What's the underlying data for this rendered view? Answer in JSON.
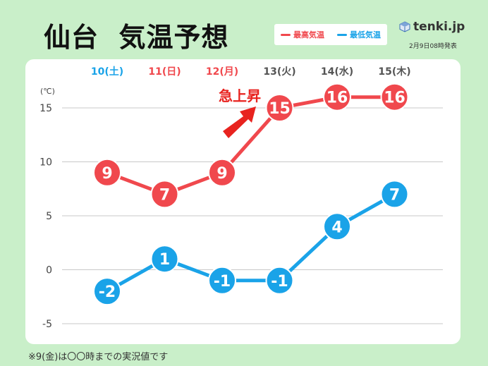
{
  "title": "仙台  気温予想",
  "legend": {
    "high_label": "最高気温",
    "low_label": "最低気温"
  },
  "brand": {
    "name": "tenki.jp",
    "icon": "tenki-logo-icon"
  },
  "issued": "2月9日08時発表",
  "footnote": "※9(金)は〇〇時までの実況値です",
  "annotation": "急上昇",
  "colors": {
    "high": "#f0484d",
    "low": "#1aa3e8",
    "day_weekend": "#1aa3e8",
    "day_holiday": "#f0484d",
    "day_weekday": "#555555",
    "annotation": "#e8231f",
    "background": "#c9efc9"
  },
  "chart_data": {
    "type": "line",
    "categories": [
      "10(土)",
      "11(日)",
      "12(月)",
      "13(火)",
      "14(水)",
      "15(木)"
    ],
    "category_styles": [
      "weekend",
      "holiday",
      "holiday",
      "weekday",
      "weekday",
      "weekday"
    ],
    "series": [
      {
        "name": "最高気温",
        "color": "#f0484d",
        "values": [
          9,
          7,
          9,
          15,
          16,
          16
        ]
      },
      {
        "name": "最低気温",
        "color": "#1aa3e8",
        "values": [
          -2,
          1,
          -1,
          -1,
          4,
          7
        ]
      }
    ],
    "ylabel": "(℃)",
    "ylim": [
      -5,
      15
    ],
    "yticks": [
      15,
      10,
      5,
      0,
      -5
    ],
    "grid": true,
    "legend_position": "top-right"
  }
}
